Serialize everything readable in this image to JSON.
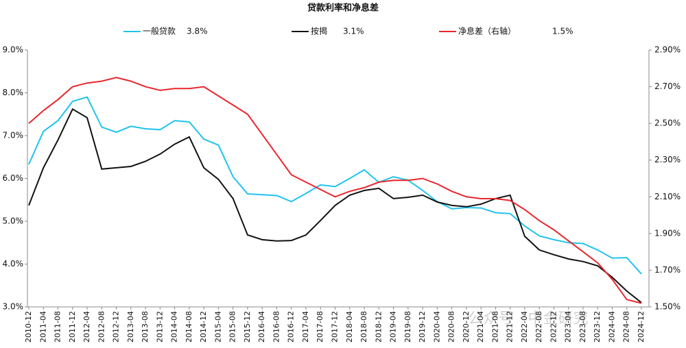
{
  "chart_data": {
    "type": "line",
    "title": "贷款利率和净息差",
    "categories": [
      "2010-12",
      "2011-04",
      "2011-08",
      "2011-12",
      "2012-04",
      "2012-08",
      "2012-12",
      "2013-04",
      "2013-08",
      "2013-12",
      "2014-04",
      "2014-08",
      "2014-12",
      "2015-04",
      "2015-08",
      "2015-12",
      "2016-04",
      "2016-08",
      "2016-12",
      "2017-04",
      "2017-08",
      "2017-12",
      "2018-04",
      "2018-08",
      "2018-12",
      "2019-04",
      "2019-08",
      "2019-12",
      "2020-04",
      "2020-08",
      "2020-12",
      "2021-04",
      "2021-08",
      "2021-12",
      "2022-04",
      "2022-08",
      "2022-12",
      "2023-04",
      "2023-08",
      "2023-12",
      "2024-04",
      "2024-08",
      "2024-12"
    ],
    "series": [
      {
        "name": "一般贷款",
        "color": "#1fc3ec",
        "value_label": "3.8%",
        "values": [
          6.33,
          7.1,
          7.35,
          7.8,
          7.9,
          7.2,
          7.08,
          7.22,
          7.16,
          7.14,
          7.35,
          7.32,
          6.92,
          6.78,
          6.04,
          5.64,
          5.62,
          5.6,
          5.46,
          5.65,
          5.85,
          5.81,
          6.0,
          6.2,
          5.91,
          6.04,
          5.96,
          5.72,
          5.46,
          5.29,
          5.32,
          5.31,
          5.2,
          5.18,
          4.89,
          4.66,
          4.57,
          4.5,
          4.48,
          4.33,
          4.14,
          4.15,
          3.77
        ]
      },
      {
        "name": "按揭",
        "color": "#111111",
        "value_label": "3.1%",
        "values": [
          5.37,
          6.25,
          6.9,
          7.62,
          7.42,
          6.22,
          6.25,
          6.28,
          6.4,
          6.57,
          6.8,
          6.97,
          6.25,
          5.98,
          5.53,
          4.68,
          4.57,
          4.54,
          4.55,
          4.68,
          5.02,
          5.37,
          5.61,
          5.72,
          5.77,
          5.53,
          5.56,
          5.61,
          5.45,
          5.37,
          5.34,
          5.4,
          5.53,
          5.61,
          4.65,
          4.33,
          4.22,
          4.12,
          4.06,
          3.96,
          3.69,
          3.37,
          3.1
        ]
      },
      {
        "name": "净息差（右轴）",
        "color": "#e8262d",
        "axis": "y2",
        "value_label": "1.5%",
        "values": [
          2.5,
          2.57,
          2.63,
          2.7,
          2.72,
          2.73,
          2.75,
          2.73,
          2.7,
          2.68,
          2.69,
          2.69,
          2.7,
          2.65,
          2.6,
          2.55,
          2.44,
          2.33,
          2.22,
          2.18,
          2.14,
          2.1,
          2.13,
          2.15,
          2.18,
          2.19,
          2.19,
          2.2,
          2.17,
          2.13,
          2.1,
          2.09,
          2.09,
          2.08,
          2.03,
          1.97,
          1.92,
          1.86,
          1.8,
          1.74,
          1.65,
          1.54,
          1.52
        ]
      }
    ],
    "ylim": [
      3,
      9
    ],
    "yticks": [
      {
        "value": 3,
        "label": "3.0%"
      },
      {
        "value": 4,
        "label": "4.0%"
      },
      {
        "value": 5,
        "label": "5.0%"
      },
      {
        "value": 6,
        "label": "6.0%"
      },
      {
        "value": 7,
        "label": "7.0%"
      },
      {
        "value": 8,
        "label": "8.0%"
      },
      {
        "value": 9,
        "label": "9.0%"
      }
    ],
    "y2lim": [
      1.5,
      2.9
    ],
    "y2ticks": [
      {
        "value": 1.5,
        "label": "1.50%"
      },
      {
        "value": 1.7,
        "label": "1.70%"
      },
      {
        "value": 1.9,
        "label": "1.90%"
      },
      {
        "value": 2.1,
        "label": "2.10%"
      },
      {
        "value": 2.3,
        "label": "2.30%"
      },
      {
        "value": 2.5,
        "label": "2.50%"
      },
      {
        "value": 2.7,
        "label": "2.70%"
      },
      {
        "value": 2.9,
        "label": "2.90%"
      }
    ],
    "watermark": "公众号 · 中金研究"
  }
}
